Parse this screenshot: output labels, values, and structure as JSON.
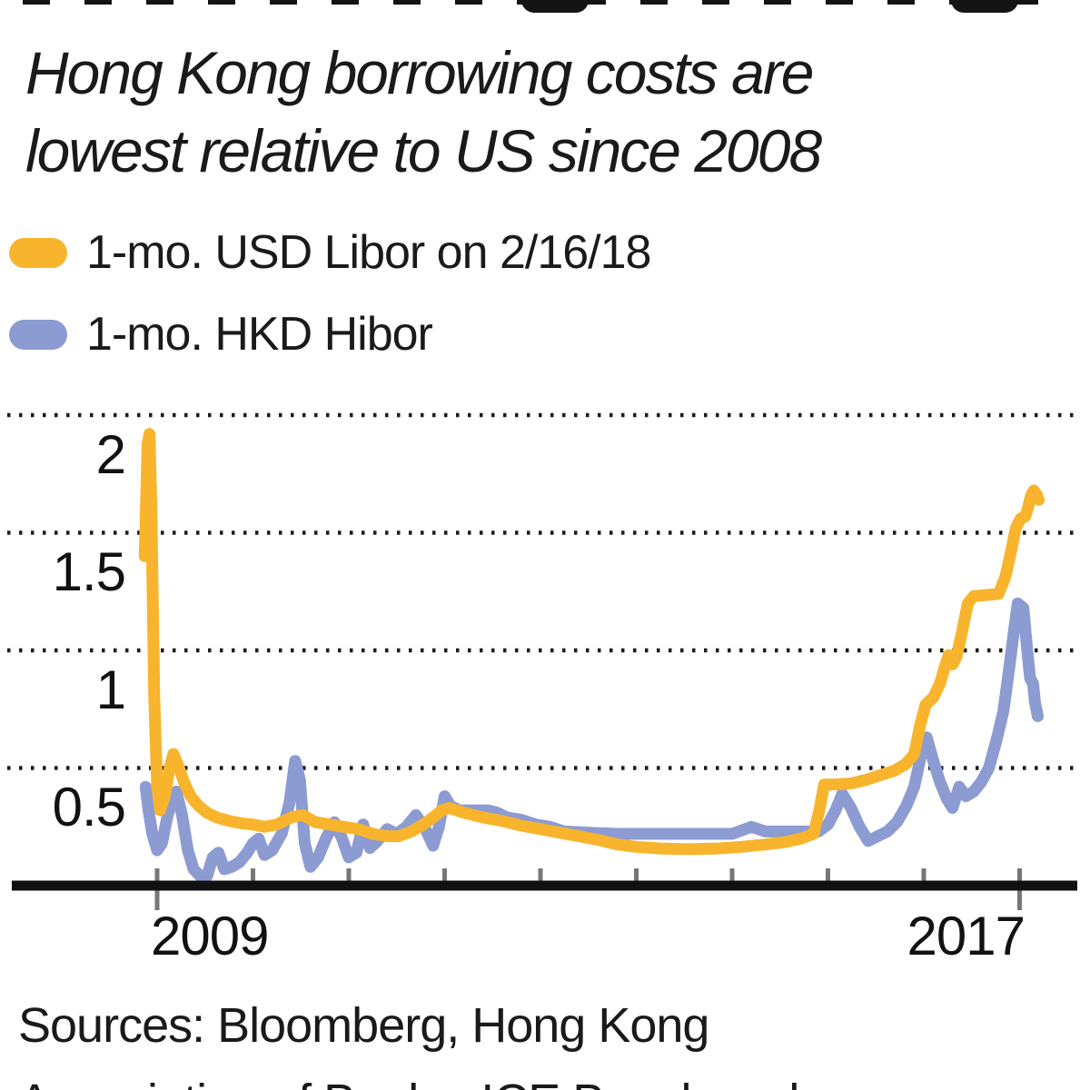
{
  "page": {
    "background": "#ffffff"
  },
  "header": {
    "subtitle_line1": "Hong Kong borrowing costs are",
    "subtitle_line2": "lowest relative to US since 2008"
  },
  "legend": {
    "items": [
      {
        "label": "1-mo. USD Libor on 2/16/18"
      },
      {
        "label": "1-mo. HKD Hibor"
      }
    ]
  },
  "footer": {
    "sources_line1": "Sources: Bloomberg, Hong Kong",
    "sources_line2": "Association of Banks, ICE Benchmark"
  },
  "chart_data": {
    "type": "line",
    "title": "Hong Kong borrowing costs are lowest relative to US since 2008",
    "xlabel": "",
    "ylabel": "",
    "grid": "dotted-horizontal",
    "legend_position": "top-left",
    "x_range": [
      2008.85,
      2018.25
    ],
    "y_range": [
      0,
      2.1
    ],
    "y_axis": {
      "ticks": [
        2,
        1.5,
        1,
        0.5
      ],
      "labels": [
        "2",
        "1.5",
        "1",
        "0.5"
      ]
    },
    "x_axis": {
      "ticks_years": [
        2009,
        2010,
        2011,
        2012,
        2013,
        2014,
        2015,
        2016,
        2017,
        2018
      ],
      "long_tick_years": [
        2009,
        2018
      ],
      "year_labels": [
        {
          "text": "2009",
          "at_year": 2009
        },
        {
          "text": "2017",
          "at_year": 2017
        }
      ]
    },
    "axis_color": "#111111",
    "tick_color": "#777777",
    "gridline_color": "#1d1d1d",
    "series": [
      {
        "name": "1-mo. USD Libor on 2/16/18",
        "color": "#F8B42C",
        "points": [
          [
            2008.87,
            1.4
          ],
          [
            2008.9,
            1.88
          ],
          [
            2008.92,
            1.92
          ],
          [
            2008.94,
            1.6
          ],
          [
            2008.97,
            0.8
          ],
          [
            2009.0,
            0.42
          ],
          [
            2009.03,
            0.32
          ],
          [
            2009.08,
            0.38
          ],
          [
            2009.13,
            0.5
          ],
          [
            2009.17,
            0.56
          ],
          [
            2009.22,
            0.51
          ],
          [
            2009.28,
            0.44
          ],
          [
            2009.35,
            0.38
          ],
          [
            2009.43,
            0.34
          ],
          [
            2009.52,
            0.31
          ],
          [
            2009.62,
            0.29
          ],
          [
            2009.75,
            0.275
          ],
          [
            2009.88,
            0.265
          ],
          [
            2010.0,
            0.26
          ],
          [
            2010.12,
            0.25
          ],
          [
            2010.25,
            0.26
          ],
          [
            2010.4,
            0.29
          ],
          [
            2010.52,
            0.3
          ],
          [
            2010.65,
            0.27
          ],
          [
            2010.8,
            0.26
          ],
          [
            2010.95,
            0.25
          ],
          [
            2011.1,
            0.24
          ],
          [
            2011.25,
            0.22
          ],
          [
            2011.4,
            0.21
          ],
          [
            2011.52,
            0.21
          ],
          [
            2011.65,
            0.23
          ],
          [
            2011.78,
            0.26
          ],
          [
            2011.88,
            0.29
          ],
          [
            2011.97,
            0.32
          ],
          [
            2012.05,
            0.33
          ],
          [
            2012.2,
            0.31
          ],
          [
            2012.4,
            0.29
          ],
          [
            2012.6,
            0.275
          ],
          [
            2012.8,
            0.255
          ],
          [
            2013.0,
            0.24
          ],
          [
            2013.2,
            0.225
          ],
          [
            2013.4,
            0.21
          ],
          [
            2013.6,
            0.195
          ],
          [
            2013.8,
            0.175
          ],
          [
            2014.0,
            0.165
          ],
          [
            2014.25,
            0.158
          ],
          [
            2014.55,
            0.155
          ],
          [
            2014.85,
            0.158
          ],
          [
            2015.1,
            0.165
          ],
          [
            2015.35,
            0.175
          ],
          [
            2015.55,
            0.185
          ],
          [
            2015.72,
            0.2
          ],
          [
            2015.85,
            0.22
          ],
          [
            2015.91,
            0.32
          ],
          [
            2015.96,
            0.43
          ],
          [
            2016.1,
            0.43
          ],
          [
            2016.25,
            0.435
          ],
          [
            2016.4,
            0.45
          ],
          [
            2016.55,
            0.47
          ],
          [
            2016.7,
            0.49
          ],
          [
            2016.82,
            0.52
          ],
          [
            2016.9,
            0.56
          ],
          [
            2016.96,
            0.68
          ],
          [
            2017.02,
            0.77
          ],
          [
            2017.1,
            0.8
          ],
          [
            2017.17,
            0.86
          ],
          [
            2017.22,
            0.93
          ],
          [
            2017.26,
            0.98
          ],
          [
            2017.3,
            0.94
          ],
          [
            2017.34,
            0.97
          ],
          [
            2017.4,
            1.08
          ],
          [
            2017.46,
            1.2
          ],
          [
            2017.52,
            1.23
          ],
          [
            2017.65,
            1.235
          ],
          [
            2017.78,
            1.24
          ],
          [
            2017.85,
            1.31
          ],
          [
            2017.91,
            1.42
          ],
          [
            2017.96,
            1.52
          ],
          [
            2018.01,
            1.56
          ],
          [
            2018.06,
            1.57
          ],
          [
            2018.09,
            1.61
          ],
          [
            2018.12,
            1.66
          ],
          [
            2018.15,
            1.68
          ],
          [
            2018.18,
            1.66
          ],
          [
            2018.2,
            1.64
          ]
        ]
      },
      {
        "name": "1-mo. HKD Hibor",
        "color": "#8C9BD2",
        "points": [
          [
            2008.88,
            0.42
          ],
          [
            2008.91,
            0.32
          ],
          [
            2008.95,
            0.22
          ],
          [
            2009.0,
            0.15
          ],
          [
            2009.05,
            0.18
          ],
          [
            2009.1,
            0.28
          ],
          [
            2009.16,
            0.38
          ],
          [
            2009.2,
            0.4
          ],
          [
            2009.26,
            0.3
          ],
          [
            2009.32,
            0.15
          ],
          [
            2009.38,
            0.07
          ],
          [
            2009.45,
            0.04
          ],
          [
            2009.52,
            0.04
          ],
          [
            2009.58,
            0.12
          ],
          [
            2009.64,
            0.14
          ],
          [
            2009.7,
            0.07
          ],
          [
            2009.78,
            0.08
          ],
          [
            2009.86,
            0.1
          ],
          [
            2009.94,
            0.14
          ],
          [
            2010.0,
            0.18
          ],
          [
            2010.06,
            0.2
          ],
          [
            2010.12,
            0.13
          ],
          [
            2010.2,
            0.15
          ],
          [
            2010.3,
            0.22
          ],
          [
            2010.38,
            0.35
          ],
          [
            2010.44,
            0.53
          ],
          [
            2010.49,
            0.45
          ],
          [
            2010.54,
            0.18
          ],
          [
            2010.6,
            0.08
          ],
          [
            2010.68,
            0.12
          ],
          [
            2010.76,
            0.2
          ],
          [
            2010.85,
            0.27
          ],
          [
            2010.93,
            0.2
          ],
          [
            2011.0,
            0.12
          ],
          [
            2011.08,
            0.14
          ],
          [
            2011.15,
            0.26
          ],
          [
            2011.22,
            0.16
          ],
          [
            2011.3,
            0.19
          ],
          [
            2011.4,
            0.24
          ],
          [
            2011.5,
            0.22
          ],
          [
            2011.6,
            0.25
          ],
          [
            2011.7,
            0.3
          ],
          [
            2011.8,
            0.24
          ],
          [
            2011.88,
            0.17
          ],
          [
            2011.94,
            0.25
          ],
          [
            2012.0,
            0.38
          ],
          [
            2012.06,
            0.34
          ],
          [
            2012.15,
            0.32
          ],
          [
            2012.3,
            0.32
          ],
          [
            2012.45,
            0.32
          ],
          [
            2012.55,
            0.31
          ],
          [
            2012.65,
            0.29
          ],
          [
            2012.8,
            0.28
          ],
          [
            2012.95,
            0.26
          ],
          [
            2013.1,
            0.25
          ],
          [
            2013.25,
            0.23
          ],
          [
            2013.5,
            0.225
          ],
          [
            2013.8,
            0.22
          ],
          [
            2014.2,
            0.22
          ],
          [
            2014.6,
            0.22
          ],
          [
            2015.0,
            0.22
          ],
          [
            2015.2,
            0.25
          ],
          [
            2015.35,
            0.23
          ],
          [
            2015.6,
            0.23
          ],
          [
            2015.9,
            0.23
          ],
          [
            2016.0,
            0.26
          ],
          [
            2016.08,
            0.32
          ],
          [
            2016.15,
            0.39
          ],
          [
            2016.24,
            0.33
          ],
          [
            2016.33,
            0.25
          ],
          [
            2016.42,
            0.19
          ],
          [
            2016.52,
            0.21
          ],
          [
            2016.62,
            0.23
          ],
          [
            2016.72,
            0.27
          ],
          [
            2016.82,
            0.34
          ],
          [
            2016.9,
            0.42
          ],
          [
            2016.97,
            0.55
          ],
          [
            2017.03,
            0.63
          ],
          [
            2017.1,
            0.53
          ],
          [
            2017.17,
            0.44
          ],
          [
            2017.24,
            0.37
          ],
          [
            2017.3,
            0.33
          ],
          [
            2017.37,
            0.42
          ],
          [
            2017.44,
            0.38
          ],
          [
            2017.52,
            0.4
          ],
          [
            2017.6,
            0.44
          ],
          [
            2017.68,
            0.5
          ],
          [
            2017.76,
            0.62
          ],
          [
            2017.83,
            0.74
          ],
          [
            2017.89,
            0.92
          ],
          [
            2017.94,
            1.08
          ],
          [
            2017.98,
            1.2
          ],
          [
            2018.04,
            1.18
          ],
          [
            2018.08,
            1.0
          ],
          [
            2018.11,
            0.88
          ],
          [
            2018.14,
            0.86
          ],
          [
            2018.16,
            0.78
          ],
          [
            2018.19,
            0.72
          ]
        ]
      }
    ]
  }
}
